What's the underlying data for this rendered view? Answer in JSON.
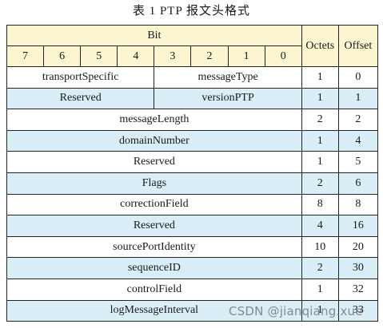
{
  "caption": "表 1   PTP 报文头格式",
  "header": {
    "bit_label": "Bit",
    "bits": [
      "7",
      "6",
      "5",
      "4",
      "3",
      "2",
      "1",
      "0"
    ],
    "octets_label": "Octets",
    "offset_label": "Offset"
  },
  "rows": [
    {
      "split": true,
      "left": "transportSpecific",
      "right": "messageType",
      "octets": "1",
      "offset": "0"
    },
    {
      "split": true,
      "left": "Reserved",
      "right": "versionPTP",
      "octets": "1",
      "offset": "1"
    },
    {
      "field": "messageLength",
      "octets": "2",
      "offset": "2"
    },
    {
      "field": "domainNumber",
      "octets": "1",
      "offset": "4"
    },
    {
      "field": "Reserved",
      "octets": "1",
      "offset": "5"
    },
    {
      "field": "Flags",
      "octets": "2",
      "offset": "6"
    },
    {
      "field": "correctionField",
      "octets": "8",
      "offset": "8"
    },
    {
      "field": "Reserved",
      "octets": "4",
      "offset": "16"
    },
    {
      "field": "sourcePortIdentity",
      "octets": "10",
      "offset": "20"
    },
    {
      "field": "sequenceID",
      "octets": "2",
      "offset": "30"
    },
    {
      "field": "controlField",
      "octets": "1",
      "offset": "32"
    },
    {
      "field": "logMessageInterval",
      "octets": "1",
      "offset": "33"
    }
  ],
  "watermark": "CSDN @jianqiang.xue"
}
